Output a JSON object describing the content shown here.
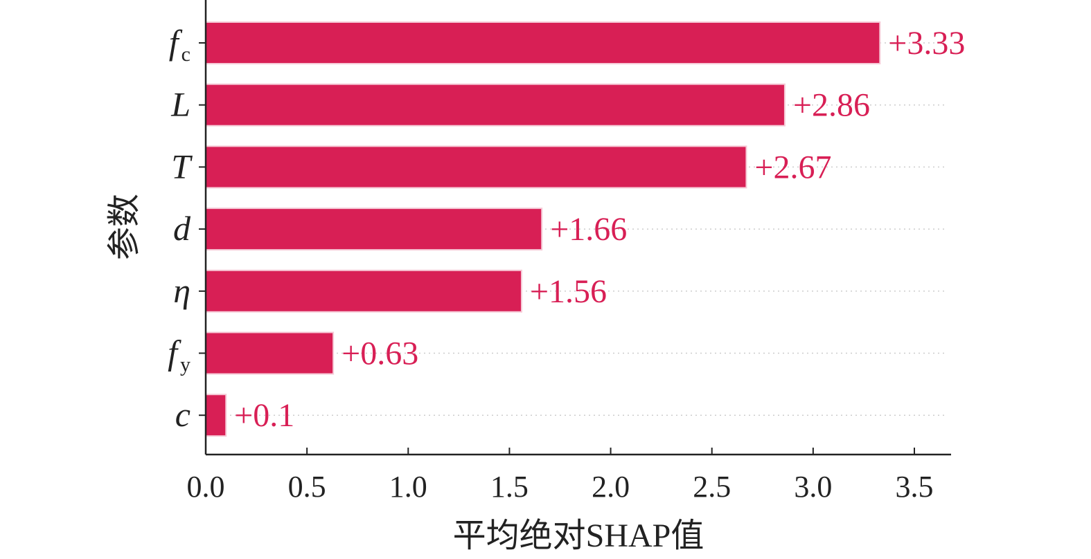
{
  "chart_data": {
    "type": "bar",
    "orientation": "horizontal",
    "categories": [
      {
        "label": "f",
        "sub": "c"
      },
      {
        "label": "L",
        "sub": ""
      },
      {
        "label": "T",
        "sub": ""
      },
      {
        "label": "d",
        "sub": ""
      },
      {
        "label": "η",
        "sub": ""
      },
      {
        "label": "f",
        "sub": "y"
      },
      {
        "label": "c",
        "sub": ""
      }
    ],
    "values": [
      3.33,
      2.86,
      2.67,
      1.66,
      1.56,
      0.63,
      0.1
    ],
    "value_labels": [
      "+3.33",
      "+2.86",
      "+2.67",
      "+1.66",
      "+1.56",
      "+0.63",
      "+0.1"
    ],
    "xlabel": "平均绝对SHAP值",
    "ylabel": "参数",
    "xlim": [
      0,
      3.5
    ],
    "xticks": [
      "0.0",
      "0.5",
      "1.0",
      "1.5",
      "2.0",
      "2.5",
      "3.0",
      "3.5"
    ],
    "grid": "dotted horizontal guide lines",
    "colors": {
      "bar": "#d81f55",
      "label": "#d81f55",
      "axis": "#222222",
      "grid": "#cccccc"
    }
  }
}
